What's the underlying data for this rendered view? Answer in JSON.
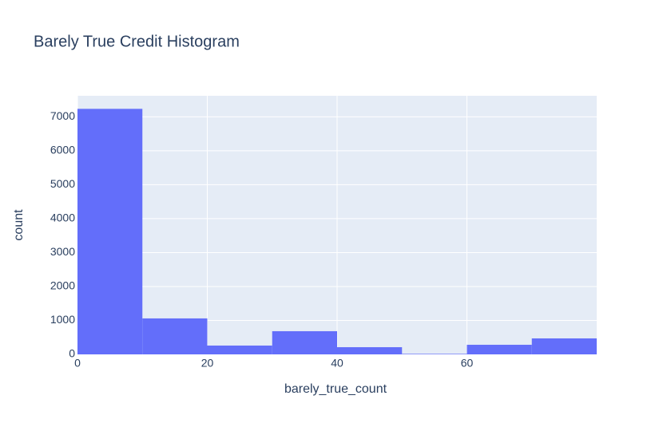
{
  "chart_data": {
    "type": "histogram",
    "title": "Barely True Credit Histogram",
    "x_label": "barely_true_count",
    "y_label": "count",
    "bins": [
      0,
      10,
      20,
      30,
      40,
      50,
      60,
      70,
      80
    ],
    "values": [
      7235,
      1060,
      260,
      683,
      212,
      15,
      283,
      471
    ],
    "color": "#636efa",
    "background": "#e5ecf6",
    "xlim": [
      0,
      80
    ],
    "xticks": [
      0,
      20,
      40,
      60
    ],
    "ylim": [
      0,
      7620
    ],
    "yticks": [
      0,
      1000,
      2000,
      3000,
      4000,
      5000,
      6000,
      7000
    ],
    "grid": true
  }
}
